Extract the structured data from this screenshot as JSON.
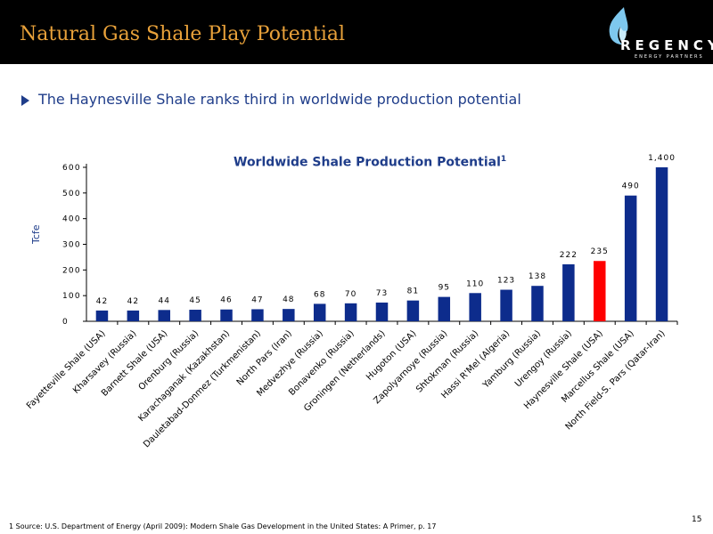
{
  "header": {
    "title": "Natural Gas Shale Play Potential",
    "logo_name": "REGENCY",
    "logo_sub": "ENERGY PARTNERS"
  },
  "bullet": "The Haynesville Shale ranks third in worldwide production potential",
  "footnote": "1  Source: U.S. Department of Energy (April 2009): Modern Shale Gas Development in the United States: A Primer, p. 17",
  "page_number": "15",
  "colors": {
    "bar": "#0d2c8c",
    "highlight": "#ff0000",
    "title_accent": "#e8a13a",
    "text_blue": "#1f3d8a"
  },
  "chart_data": {
    "type": "bar",
    "title": "Worldwide Shale Production Potential",
    "title_superscript": "1",
    "ylabel": "Tcfe",
    "xlabel": "",
    "ylim": [
      0,
      600
    ],
    "yticks": [
      0,
      100,
      200,
      300,
      400,
      500,
      600
    ],
    "highlight_index": 16,
    "axis_break_note": "last bar (1,400) drawn truncated at 600",
    "categories": [
      "Fayetteville Shale (USA)",
      "Kharsavey (Russia)",
      "Barnett Shale (USA)",
      "Orenburg (Russia)",
      "Karachaganak (Kazakhstan)",
      "Dauletabad-Donmez (Turkmenistan)",
      "North Pars (Iran)",
      "Medvezhye (Russia)",
      "Bonavenko (Russia)",
      "Groningen (Netherlands)",
      "Hugoton (USA)",
      "Zapolyarnoye (Russia)",
      "Shtokman (Russia)",
      "Hassi R'Mel (Algeria)",
      "Yamburg (Russia)",
      "Urengoy (Russia)",
      "Haynesville Shale (USA)",
      "Marcellus Shale (USA)",
      "North Field-S. Pars (Qatar-Iran)"
    ],
    "values": [
      42,
      42,
      44,
      45,
      46,
      47,
      48,
      68,
      70,
      73,
      81,
      95,
      110,
      123,
      138,
      222,
      235,
      490,
      1400
    ],
    "value_labels": [
      "42",
      "42",
      "44",
      "45",
      "46",
      "47",
      "48",
      "68",
      "70",
      "73",
      "81",
      "95",
      "110",
      "123",
      "138",
      "222",
      "235",
      "490",
      "1,400"
    ]
  }
}
